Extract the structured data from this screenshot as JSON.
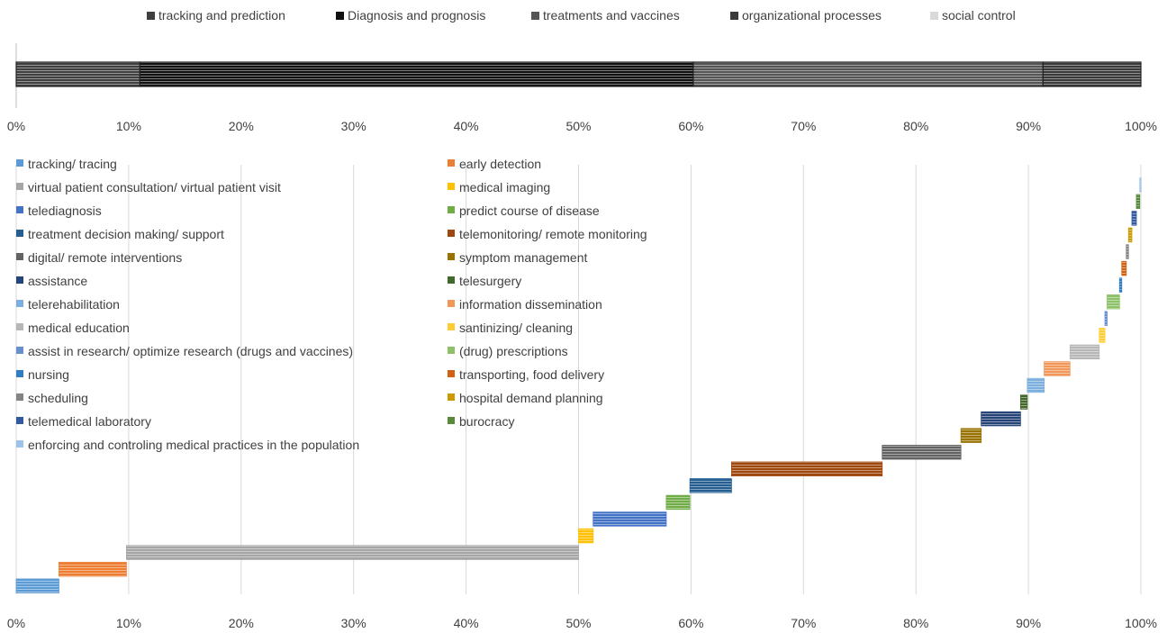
{
  "chart_data": [
    {
      "type": "bar",
      "orientation": "horizontal",
      "stacked": true,
      "title": "",
      "xlabel": "",
      "ylabel": "",
      "xlim": [
        0,
        100
      ],
      "xticks": [
        "0%",
        "10%",
        "20%",
        "30%",
        "40%",
        "50%",
        "60%",
        "70%",
        "80%",
        "90%",
        "100%"
      ],
      "legend_position": "top",
      "grid": false,
      "series": [
        {
          "name": "tracking and prediction",
          "value": 11.0,
          "color": "#404040"
        },
        {
          "name": "Diagnosis and prognosis",
          "value": 49.2,
          "color": "#111111"
        },
        {
          "name": "treatments and vaccines",
          "value": 31.1,
          "color": "#555555"
        },
        {
          "name": "organizational processes",
          "value": 8.7,
          "color": "#3a3a3a"
        },
        {
          "name": "social control",
          "value": 0.0,
          "color": "#d9d9d9"
        }
      ]
    },
    {
      "type": "bar",
      "orientation": "horizontal",
      "subtype": "waterfall",
      "title": "",
      "xlabel": "",
      "ylabel": "",
      "xlim": [
        0,
        100
      ],
      "xticks": [
        "0%",
        "10%",
        "20%",
        "30%",
        "40%",
        "50%",
        "60%",
        "70%",
        "80%",
        "90%",
        "100%"
      ],
      "legend_position": "top-left",
      "grid": true,
      "series": [
        {
          "name": "tracking/ tracing",
          "start": 0.0,
          "end": 3.8,
          "color": "#5b9bd5"
        },
        {
          "name": "early detection",
          "start": 3.8,
          "end": 9.8,
          "color": "#ed7d31"
        },
        {
          "name": "virtual patient consultation/ virtual patient visit",
          "start": 9.8,
          "end": 50.0,
          "color": "#a5a5a5"
        },
        {
          "name": "medical imaging",
          "start": 50.0,
          "end": 51.3,
          "color": "#ffc000"
        },
        {
          "name": "telediagnosis",
          "start": 51.3,
          "end": 57.8,
          "color": "#4472c4"
        },
        {
          "name": "predict course of disease",
          "start": 57.8,
          "end": 59.9,
          "color": "#70ad47"
        },
        {
          "name": "treatment decision making/ support",
          "start": 59.9,
          "end": 63.6,
          "color": "#255e91"
        },
        {
          "name": "telemonitoring/ remote monitoring",
          "start": 63.6,
          "end": 77.0,
          "color": "#9e480e"
        },
        {
          "name": "digital/ remote interventions",
          "start": 77.0,
          "end": 84.0,
          "color": "#636363"
        },
        {
          "name": "symptom management",
          "start": 84.0,
          "end": 85.8,
          "color": "#997300"
        },
        {
          "name": "assistance",
          "start": 85.8,
          "end": 89.3,
          "color": "#264478"
        },
        {
          "name": "telesurgery",
          "start": 89.3,
          "end": 89.9,
          "color": "#43682b"
        },
        {
          "name": "telerehabilitation",
          "start": 89.9,
          "end": 91.4,
          "color": "#7cafdd"
        },
        {
          "name": "information dissemination",
          "start": 91.4,
          "end": 93.7,
          "color": "#f1975a"
        },
        {
          "name": "medical education",
          "start": 93.7,
          "end": 96.3,
          "color": "#b7b7b7"
        },
        {
          "name": "santinizing/ cleaning",
          "start": 96.3,
          "end": 96.8,
          "color": "#ffcd33"
        },
        {
          "name": "assist in research/ optimize research (drugs and vaccines)",
          "start": 96.8,
          "end": 97.0,
          "color": "#698ed0"
        },
        {
          "name": "(drug) prescriptions",
          "start": 97.0,
          "end": 98.1,
          "color": "#8cc168"
        },
        {
          "name": "nursing",
          "start": 98.1,
          "end": 98.3,
          "color": "#327dc2"
        },
        {
          "name": "transporting, food delivery",
          "start": 98.3,
          "end": 98.7,
          "color": "#d26012"
        },
        {
          "name": "scheduling",
          "start": 98.7,
          "end": 98.9,
          "color": "#848484"
        },
        {
          "name": "hospital demand planning",
          "start": 98.9,
          "end": 99.2,
          "color": "#cc9a00"
        },
        {
          "name": "telemedical laboratory",
          "start": 99.2,
          "end": 99.6,
          "color": "#335aa1"
        },
        {
          "name": "burocracy",
          "start": 99.6,
          "end": 99.9,
          "color": "#5a8a39"
        },
        {
          "name": "enforcing and controling medical practices in the population",
          "start": 99.9,
          "end": 100.0,
          "color": "#9dc3e6"
        }
      ]
    }
  ]
}
